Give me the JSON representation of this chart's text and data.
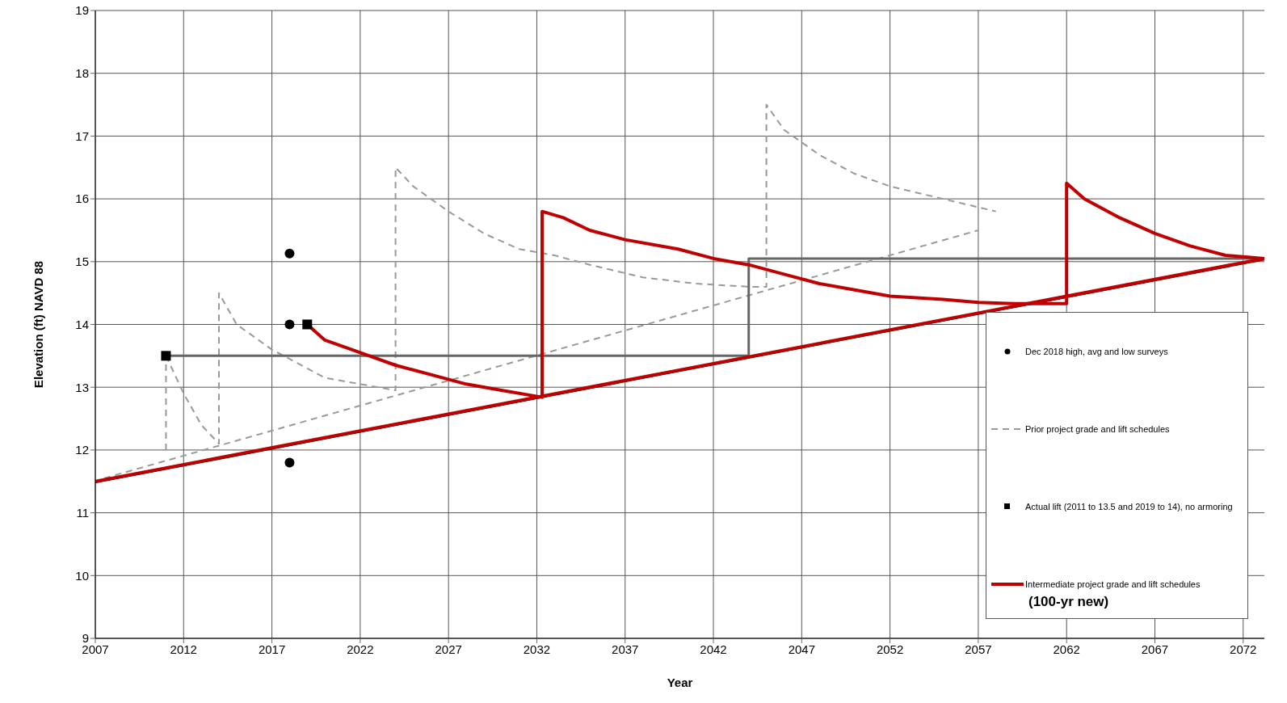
{
  "chart_data": {
    "type": "line",
    "xlabel": "Year",
    "ylabel": "Elevation (ft) NAVD 88",
    "xlim": [
      2007,
      2073.2
    ],
    "xticks": [
      2007,
      2012,
      2017,
      2022,
      2027,
      2032,
      2037,
      2042,
      2047,
      2052,
      2057,
      2062,
      2067,
      2072
    ],
    "ylim": [
      9,
      19
    ],
    "yticks": [
      9,
      10,
      11,
      12,
      13,
      14,
      15,
      16,
      17,
      18,
      19
    ],
    "grid": true,
    "legend": "bottom right",
    "annotations": [
      "(100-yr new)"
    ],
    "series": [
      {
        "name": "Dec 2018 high, avg and low surveys",
        "type": "scatter",
        "marker": "circle",
        "color": "#000000",
        "x": [
          2018,
          2018,
          2018
        ],
        "values": [
          15.13,
          14,
          11.8
        ]
      },
      {
        "name": "Prior project grade and lift schedules",
        "type": "line",
        "line_style": "dashed",
        "color": "#999999",
        "x": [
          2011,
          2011,
          null,
          2011,
          2012,
          2013,
          2014,
          2014,
          2015,
          2017,
          2018,
          2019,
          2020,
          2022,
          2024,
          2024,
          2025,
          2027,
          2029,
          2031,
          2033,
          2035,
          2038,
          2041,
          2044,
          2045,
          2045,
          2046,
          2048,
          2050,
          2052,
          2055,
          2058,
          null,
          2007.5,
          2057
        ],
        "values": [
          12.0,
          13.5,
          null,
          13.5,
          12.9,
          12.4,
          12.1,
          14.5,
          14.0,
          13.6,
          13.45,
          13.3,
          13.15,
          13.05,
          12.95,
          16.5,
          16.2,
          15.8,
          15.45,
          15.2,
          15.1,
          14.95,
          14.75,
          14.65,
          14.6,
          14.6,
          17.5,
          17.1,
          16.7,
          16.4,
          16.2,
          16.0,
          15.8,
          null,
          11.55,
          15.5
        ]
      },
      {
        "type": "line",
        "line_style": "solid",
        "color": "#666666",
        "x": [
          2011,
          2044,
          2044,
          2073.2
        ],
        "values": [
          13.5,
          13.5,
          15.05,
          15.05
        ]
      },
      {
        "name": "Actual lift (2011 to 13.5 and 2019 to 14), no armoring",
        "type": "scatter",
        "marker": "square",
        "color": "#000000",
        "x": [
          2011,
          2019
        ],
        "values": [
          13.5,
          14
        ]
      },
      {
        "type": "line",
        "line_style": "solid",
        "color": "#000000",
        "x": [
          2007,
          2073.2
        ],
        "values": [
          11.49,
          15.04
        ]
      },
      {
        "type": "line",
        "line_style": "solid",
        "color": "#c00000",
        "x": [
          2007,
          2073.2
        ],
        "values": [
          11.5,
          15.05
        ]
      },
      {
        "name": "Intermediate project grade and lift schedules",
        "type": "line",
        "line_style": "solid",
        "color": "#c00000",
        "x": [
          2019,
          2020,
          2022,
          2024,
          2026,
          2028,
          2030,
          2032.3,
          2032.3,
          2033.5,
          2035,
          2037,
          2040,
          2042,
          2044,
          2046,
          2048,
          2050,
          2052,
          2055,
          2057,
          2059,
          2062,
          2062,
          2063,
          2065,
          2067,
          2069,
          2071,
          2073.2
        ],
        "values": [
          14.0,
          13.75,
          13.55,
          13.35,
          13.2,
          13.05,
          12.95,
          12.84,
          15.8,
          15.7,
          15.5,
          15.35,
          15.2,
          15.05,
          14.95,
          14.8,
          14.65,
          14.55,
          14.45,
          14.4,
          14.35,
          14.33,
          14.33,
          16.25,
          16.0,
          15.7,
          15.45,
          15.25,
          15.1,
          15.05
        ]
      }
    ]
  }
}
